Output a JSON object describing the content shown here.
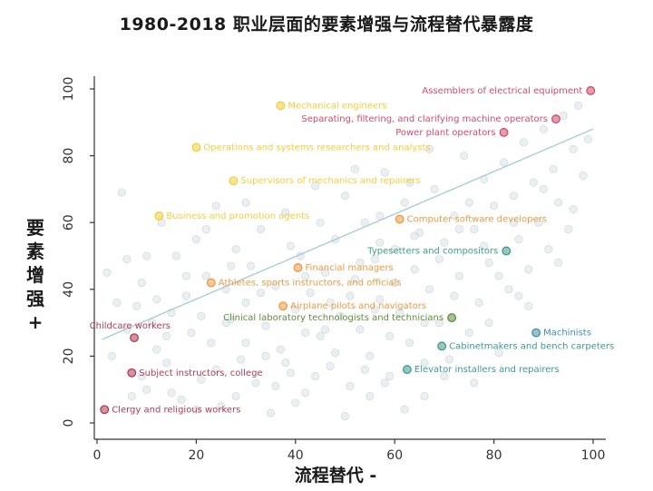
{
  "chart_data": {
    "type": "scatter",
    "title": "1980-2018 职业层面的要素增强与流程替代暴露度",
    "xlabel": "流程替代 -",
    "ylabel": "要素增强 +",
    "xlim": [
      0,
      100
    ],
    "ylim": [
      0,
      100
    ],
    "xticks": [
      0,
      20,
      40,
      60,
      80,
      100
    ],
    "yticks": [
      0,
      20,
      40,
      60,
      80,
      100
    ],
    "trend_line": {
      "x": [
        1,
        100
      ],
      "y": [
        25,
        88
      ],
      "color": "#a9ccd6"
    },
    "labeled_points": [
      {
        "label": "Assemblers of electrical equipment",
        "x": 99.5,
        "y": 99.5,
        "color": "#d24b6e",
        "side": "left"
      },
      {
        "label": "Mechanical engineers",
        "x": 37,
        "y": 95,
        "color": "#f1cf3f",
        "side": "right"
      },
      {
        "label": "Separating, filtering, and clarifying machine operators",
        "x": 92.5,
        "y": 91,
        "color": "#d24b6e",
        "side": "left"
      },
      {
        "label": "Power plant operators",
        "x": 82,
        "y": 87,
        "color": "#d24b6e",
        "side": "left"
      },
      {
        "label": "Operations and systems researchers and analysts",
        "x": 20,
        "y": 82.5,
        "color": "#f1cf3f",
        "side": "right"
      },
      {
        "label": "Supervisors of mechanics and repairers",
        "x": 27.5,
        "y": 72.5,
        "color": "#f1cf3f",
        "side": "right"
      },
      {
        "label": "Business and promotion agents",
        "x": 12.5,
        "y": 62,
        "color": "#f1cf3f",
        "side": "right"
      },
      {
        "label": "Computer software developers",
        "x": 61,
        "y": 61,
        "color": "#ec9a46",
        "side": "right"
      },
      {
        "label": "Typesetters and compositors",
        "x": 82.5,
        "y": 51.5,
        "color": "#3f9a8c",
        "side": "left"
      },
      {
        "label": "Financial managers",
        "x": 40.5,
        "y": 46.5,
        "color": "#ec9a46",
        "side": "right"
      },
      {
        "label": "Athletes, sports instructors, and officials",
        "x": 23,
        "y": 42,
        "color": "#ec9a46",
        "side": "right"
      },
      {
        "label": "Airplane pilots and navigators",
        "x": 37.5,
        "y": 35,
        "color": "#ec9a46",
        "side": "right"
      },
      {
        "label": "Clinical laboratory technologists and technicians",
        "x": 71.5,
        "y": 31.5,
        "color": "#5f8c3e",
        "side": "left"
      },
      {
        "label": "Childcare workers",
        "x": 7.5,
        "y": 25.5,
        "color": "#b03a55",
        "side": "left-up"
      },
      {
        "label": "Machinists",
        "x": 88.5,
        "y": 27,
        "color": "#3f8faa",
        "side": "right"
      },
      {
        "label": "Cabinetmakers and bench carpeters",
        "x": 69.5,
        "y": 23,
        "color": "#3f9a8c",
        "side": "right"
      },
      {
        "label": "Subject instructors, college",
        "x": 7,
        "y": 15,
        "color": "#b03a55",
        "side": "right"
      },
      {
        "label": "Elevator installers and repairers",
        "x": 62.5,
        "y": 16,
        "color": "#3f9a8c",
        "side": "right"
      },
      {
        "label": "Clergy and religious workers",
        "x": 1.5,
        "y": 4,
        "color": "#b03a55",
        "side": "right"
      }
    ],
    "background_points": [
      [
        2,
        45
      ],
      [
        4,
        36
      ],
      [
        5,
        69
      ],
      [
        6,
        49
      ],
      [
        7,
        8
      ],
      [
        8,
        35
      ],
      [
        9,
        42
      ],
      [
        10,
        10
      ],
      [
        11,
        30
      ],
      [
        12,
        22
      ],
      [
        13,
        60
      ],
      [
        14,
        18
      ],
      [
        15,
        33
      ],
      [
        16,
        50
      ],
      [
        17,
        7
      ],
      [
        18,
        38
      ],
      [
        19,
        27
      ],
      [
        20,
        55
      ],
      [
        21,
        13
      ],
      [
        22,
        44
      ],
      [
        23,
        24
      ],
      [
        24,
        65
      ],
      [
        25,
        5
      ],
      [
        26,
        40
      ],
      [
        27,
        31
      ],
      [
        28,
        52
      ],
      [
        29,
        19
      ],
      [
        30,
        36
      ],
      [
        31,
        47
      ],
      [
        32,
        12
      ],
      [
        33,
        58
      ],
      [
        34,
        29
      ],
      [
        35,
        3
      ],
      [
        36,
        41
      ],
      [
        37,
        22
      ],
      [
        38,
        63
      ],
      [
        39,
        15
      ],
      [
        40,
        34
      ],
      [
        41,
        50
      ],
      [
        42,
        9
      ],
      [
        43,
        39
      ],
      [
        44,
        71
      ],
      [
        45,
        26
      ],
      [
        46,
        45
      ],
      [
        47,
        17
      ],
      [
        48,
        55
      ],
      [
        49,
        32
      ],
      [
        50,
        68
      ],
      [
        51,
        11
      ],
      [
        52,
        43
      ],
      [
        53,
        28
      ],
      [
        54,
        60
      ],
      [
        55,
        20
      ],
      [
        56,
        49
      ],
      [
        57,
        37
      ],
      [
        58,
        75
      ],
      [
        59,
        14
      ],
      [
        60,
        52
      ],
      [
        61,
        33
      ],
      [
        62,
        66
      ],
      [
        63,
        24
      ],
      [
        64,
        46
      ],
      [
        65,
        57
      ],
      [
        66,
        8
      ],
      [
        67,
        40
      ],
      [
        68,
        70
      ],
      [
        69,
        30
      ],
      [
        70,
        54
      ],
      [
        71,
        19
      ],
      [
        72,
        62
      ],
      [
        73,
        44
      ],
      [
        74,
        80
      ],
      [
        75,
        27
      ],
      [
        76,
        58
      ],
      [
        77,
        36
      ],
      [
        78,
        73
      ],
      [
        79,
        48
      ],
      [
        80,
        65
      ],
      [
        81,
        21
      ],
      [
        82,
        78
      ],
      [
        83,
        40
      ],
      [
        84,
        68
      ],
      [
        85,
        55
      ],
      [
        86,
        84
      ],
      [
        87,
        46
      ],
      [
        88,
        72
      ],
      [
        89,
        60
      ],
      [
        90,
        88
      ],
      [
        91,
        52
      ],
      [
        92,
        76
      ],
      [
        93,
        66
      ],
      [
        94,
        92
      ],
      [
        95,
        58
      ],
      [
        96,
        82
      ],
      [
        97,
        95
      ],
      [
        98,
        74
      ],
      [
        3,
        20
      ],
      [
        6,
        28
      ],
      [
        9,
        14
      ],
      [
        12,
        37
      ],
      [
        15,
        9
      ],
      [
        18,
        44
      ],
      [
        21,
        32
      ],
      [
        24,
        16
      ],
      [
        27,
        47
      ],
      [
        30,
        24
      ],
      [
        33,
        39
      ],
      [
        36,
        11
      ],
      [
        39,
        53
      ],
      [
        42,
        27
      ],
      [
        45,
        60
      ],
      [
        48,
        21
      ],
      [
        51,
        38
      ],
      [
        54,
        16
      ],
      [
        57,
        62
      ],
      [
        60,
        42
      ],
      [
        63,
        72
      ],
      [
        66,
        30
      ],
      [
        69,
        49
      ],
      [
        72,
        38
      ],
      [
        75,
        66
      ],
      [
        78,
        53
      ],
      [
        81,
        44
      ],
      [
        84,
        60
      ],
      [
        87,
        35
      ],
      [
        90,
        70
      ],
      [
        93,
        48
      ],
      [
        96,
        64
      ],
      [
        99,
        85
      ],
      [
        46,
        28
      ],
      [
        52,
        76
      ],
      [
        56,
        34
      ],
      [
        58,
        12
      ],
      [
        64,
        56
      ],
      [
        67,
        82
      ],
      [
        70,
        14
      ],
      [
        73,
        58
      ],
      [
        76,
        12
      ],
      [
        79,
        30
      ],
      [
        85,
        38
      ],
      [
        20,
        4
      ],
      [
        28,
        8
      ],
      [
        34,
        20
      ],
      [
        40,
        6
      ],
      [
        44,
        14
      ],
      [
        50,
        2
      ],
      [
        55,
        8
      ],
      [
        59,
        26
      ],
      [
        62,
        4
      ],
      [
        66,
        18
      ],
      [
        10,
        50
      ],
      [
        14,
        26
      ],
      [
        22,
        58
      ],
      [
        26,
        30
      ],
      [
        30,
        66
      ],
      [
        38,
        18
      ],
      [
        42,
        44
      ],
      [
        47,
        36
      ],
      [
        53,
        48
      ],
      [
        57,
        54
      ]
    ]
  }
}
